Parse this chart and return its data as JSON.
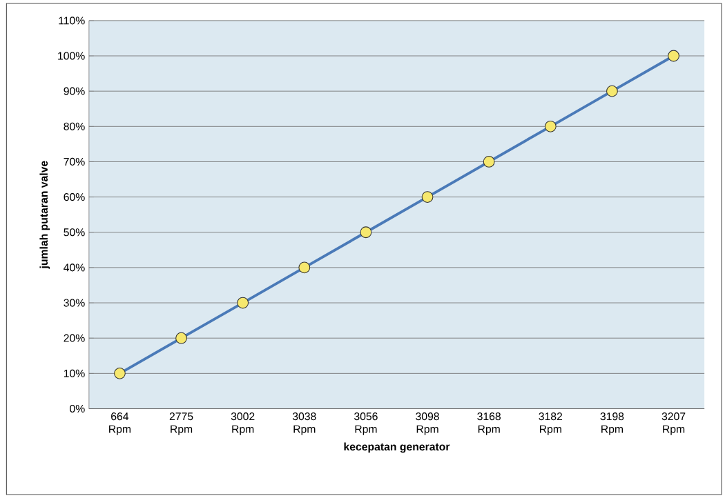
{
  "chart_data": {
    "type": "line",
    "xlabel": "kecepatan generator",
    "ylabel": "jumlah putaran valve",
    "categories": [
      "664 Rpm",
      "2775 Rpm",
      "3002 Rpm",
      "3038 Rpm",
      "3056 Rpm",
      "3098 Rpm",
      "3168 Rpm",
      "3182 Rpm",
      "3198 Rpm",
      "3207 Rpm"
    ],
    "series": [
      {
        "color": "#4a7ab8",
        "values": [
          10,
          20,
          30,
          40,
          50,
          60,
          70,
          80,
          90,
          100
        ]
      }
    ],
    "ylim": [
      0,
      110
    ],
    "yticks": [
      {
        "value": 0,
        "label": "0%"
      },
      {
        "value": 10,
        "label": "10%"
      },
      {
        "value": 20,
        "label": "20%"
      },
      {
        "value": 30,
        "label": "30%"
      },
      {
        "value": 40,
        "label": "40%"
      },
      {
        "value": 50,
        "label": "50%"
      },
      {
        "value": 60,
        "label": "60%"
      },
      {
        "value": 70,
        "label": "70%"
      },
      {
        "value": 80,
        "label": "80%"
      },
      {
        "value": 90,
        "label": "90%"
      },
      {
        "value": 100,
        "label": "100%"
      },
      {
        "value": 110,
        "label": "110%"
      }
    ],
    "grid": "y",
    "marker": "circle",
    "line_style": "solid"
  }
}
